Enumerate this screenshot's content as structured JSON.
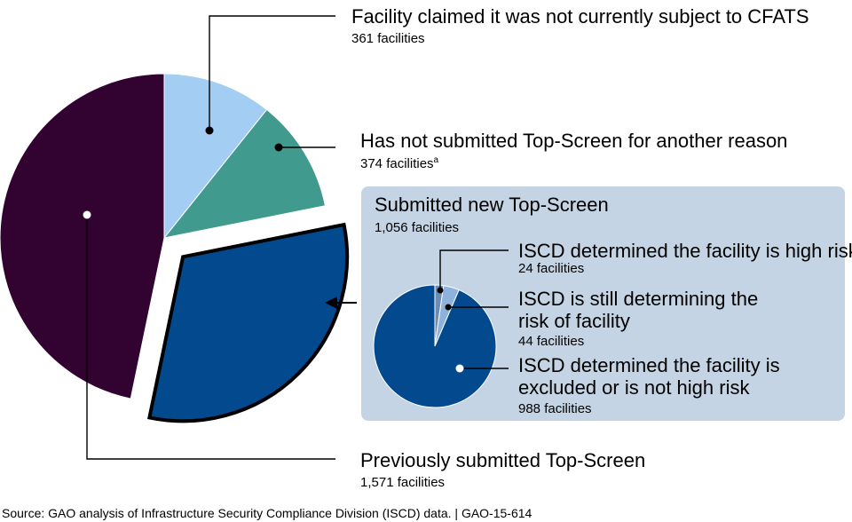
{
  "chart_data": [
    {
      "type": "pie",
      "colors": [
        "#a4cdf3",
        "#419a8e",
        "#03498e",
        "#320231"
      ],
      "series": [
        {
          "name": "Facility claimed it was not currently subject to CFATS",
          "count_label": "361 facilities",
          "value": 361
        },
        {
          "name": "Has not submitted Top-Screen for another reason",
          "count_label": "374 facilities",
          "footnote": "a",
          "value": 374
        },
        {
          "name": "Submitted new Top-Screen",
          "count_label": "1,056 facilities",
          "value": 1056,
          "exploded": true
        },
        {
          "name": "Previously submitted Top-Screen",
          "count_label": "1,571 facilities",
          "value": 1571
        }
      ]
    },
    {
      "type": "pie",
      "title": "Submitted new Top-Screen",
      "subtitle": "1,056 facilities",
      "colors": [
        "#6b8cb4",
        "#8fb2dc",
        "#03498e"
      ],
      "series": [
        {
          "name": "ISCD determined the facility is high risk",
          "count_label": "24 facilities",
          "value": 24
        },
        {
          "name": "ISCD is still determining the risk of facility",
          "name_lines": [
            "ISCD is still determining the",
            "risk of facility"
          ],
          "count_label": "44 facilities",
          "value": 44
        },
        {
          "name": "ISCD determined the facility is excluded or is not high risk",
          "name_lines": [
            "ISCD determined the facility is",
            "excluded or is not high risk"
          ],
          "count_label": "988 facilities",
          "value": 988
        }
      ]
    }
  ],
  "source": "Source: GAO analysis of Infrastructure Security Compliance Division (ISCD)  data.  |  GAO-15-614"
}
